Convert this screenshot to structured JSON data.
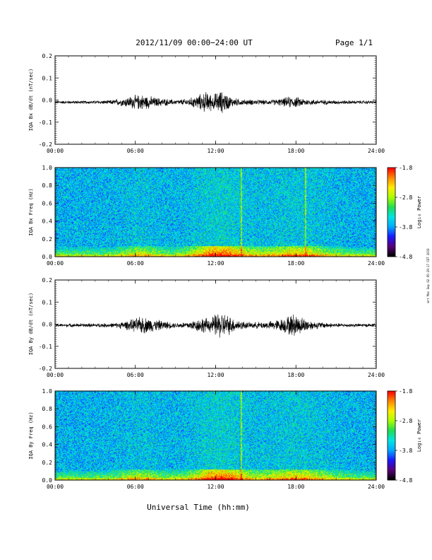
{
  "header": {
    "title": "2012/11/09   00:00−24:00 UT",
    "page": "Page 1/1"
  },
  "footer": {
    "xlabel": "Universal Time (hh:mm)",
    "stamp": "mrt Mon Sep 02 05:29:17 CDT 2019"
  },
  "colorbar": {
    "label": "Log₁₀ Power",
    "ticks": [
      "-1.8",
      "-2.8",
      "-3.8",
      "-4.8"
    ],
    "range": [
      -4.8,
      -1.8
    ],
    "colors": [
      "#000000",
      "#5a007a",
      "#1a1aff",
      "#00aaff",
      "#00e5e5",
      "#22dd55",
      "#aaff00",
      "#ffee00",
      "#ff8800",
      "#ff0000"
    ]
  },
  "chart_data": [
    {
      "type": "line",
      "ylabel": "IQA Bx dB/dt (nT/sec)",
      "xlim": [
        "00:00",
        "24:00"
      ],
      "ylim": [
        -0.2,
        0.2
      ],
      "xticks": [
        "00:00",
        "06:00",
        "12:00",
        "18:00",
        "24:00"
      ],
      "yticks": [
        "-0.2",
        "-0.1",
        "0.0",
        "0.1",
        "0.2"
      ],
      "series": [
        {
          "values_description_free": true,
          "baseline": -0.01,
          "envelope": [
            [
              0,
              0.008
            ],
            [
              2,
              0.008
            ],
            [
              4,
              0.01
            ],
            [
              5,
              0.02
            ],
            [
              5.8,
              0.035
            ],
            [
              6.5,
              0.04
            ],
            [
              7.5,
              0.025
            ],
            [
              9,
              0.012
            ],
            [
              10,
              0.02
            ],
            [
              10.8,
              0.04
            ],
            [
              11.3,
              0.055
            ],
            [
              11.8,
              0.04
            ],
            [
              12.3,
              0.06
            ],
            [
              12.7,
              0.05
            ],
            [
              13.2,
              0.025
            ],
            [
              14,
              0.015
            ],
            [
              16,
              0.012
            ],
            [
              17,
              0.02
            ],
            [
              17.5,
              0.03
            ],
            [
              18.2,
              0.025
            ],
            [
              19,
              0.015
            ],
            [
              21,
              0.01
            ],
            [
              24,
              0.008
            ]
          ]
        }
      ]
    },
    {
      "type": "heatmap",
      "ylabel": "IQA Bx Freq (Hz)",
      "xlim": [
        "00:00",
        "24:00"
      ],
      "ylim": [
        0.0,
        1.0
      ],
      "xticks": [
        "00:00",
        "06:00",
        "12:00",
        "18:00",
        "24:00"
      ],
      "yticks": [
        "0.0",
        "0.2",
        "0.4",
        "0.6",
        "0.8",
        "1.0"
      ],
      "zlim": [
        -4.8,
        -1.8
      ],
      "features": {
        "vertical_line_hours": [
          13.9,
          18.7
        ],
        "low_freq_band_hz": 0.1,
        "peak_hours": 12.3
      }
    },
    {
      "type": "line",
      "ylabel": "IQA By dB/dt (nT/sec)",
      "xlim": [
        "00:00",
        "24:00"
      ],
      "ylim": [
        -0.2,
        0.2
      ],
      "xticks": [
        "00:00",
        "06:00",
        "12:00",
        "18:00",
        "24:00"
      ],
      "yticks": [
        "-0.2",
        "-0.1",
        "0.0",
        "0.1",
        "0.2"
      ],
      "series": [
        {
          "baseline": -0.005,
          "envelope": [
            [
              0,
              0.008
            ],
            [
              3,
              0.01
            ],
            [
              4.5,
              0.012
            ],
            [
              5.5,
              0.025
            ],
            [
              6.5,
              0.045
            ],
            [
              7.5,
              0.03
            ],
            [
              9,
              0.012
            ],
            [
              10,
              0.02
            ],
            [
              11,
              0.04
            ],
            [
              11.6,
              0.035
            ],
            [
              12.2,
              0.07
            ],
            [
              12.7,
              0.06
            ],
            [
              13.5,
              0.03
            ],
            [
              14.5,
              0.015
            ],
            [
              16,
              0.02
            ],
            [
              17,
              0.035
            ],
            [
              17.8,
              0.06
            ],
            [
              18.5,
              0.04
            ],
            [
              19.3,
              0.02
            ],
            [
              21,
              0.01
            ],
            [
              24,
              0.008
            ]
          ]
        }
      ]
    },
    {
      "type": "heatmap",
      "ylabel": "IQA By Freq (Hz)",
      "xlim": [
        "00:00",
        "24:00"
      ],
      "ylim": [
        0.0,
        1.0
      ],
      "xticks": [
        "00:00",
        "06:00",
        "12:00",
        "18:00",
        "24:00"
      ],
      "yticks": [
        "0.0",
        "0.2",
        "0.4",
        "0.6",
        "0.8",
        "1.0"
      ],
      "zlim": [
        -4.8,
        -1.8
      ],
      "features": {
        "vertical_line_hours": [
          13.9
        ],
        "low_freq_band_hz": 0.1,
        "peak_hours": 12.3
      }
    }
  ]
}
